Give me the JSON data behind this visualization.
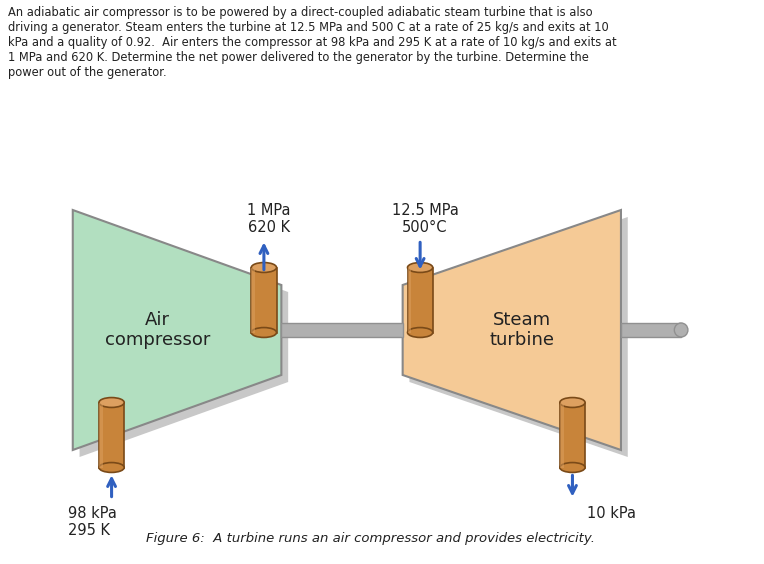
{
  "title_text": "An adiabatic air compressor is to be powered by a direct-coupled adiabatic steam turbine that is also\ndriving a generator. Steam enters the turbine at 12.5 MPa and 500 C at a rate of 25 kg/s and exits at 10\nkPa and a quality of 0.92.  Air enters the compressor at 98 kPa and 295 K at a rate of 10 kg/s and exits at\n1 MPa and 620 K. Determine the net power delivered to the generator by the turbine. Determine the\npower out of the generator.",
  "caption": "Figure 6:  A turbine runs an air compressor and provides electricity.",
  "label_top_left": "1 MPa\n620 K",
  "label_top_right": "12.5 MPa\n500°C",
  "label_bottom_left": "98 kPa\n295 K",
  "label_bottom_right": "10 kPa",
  "label_compressor": "Air\ncompressor",
  "label_turbine": "Steam\nturbine",
  "bg_color": "#ffffff",
  "compressor_fill": "#b2dfc0",
  "turbine_fill": "#f5ca96",
  "shaft_color": "#b0b0b0",
  "shaft_edge": "#909090",
  "tube_fill": "#c8843a",
  "tube_highlight": "#dda060",
  "tube_edge": "#7a4a18",
  "shadow_color": "#c8c8c8",
  "trapez_edge": "#888888",
  "arrow_color": "#3060c0",
  "text_color": "#222222",
  "font_size_body": 8.3,
  "font_size_label": 10.5,
  "font_size_caption": 9.5
}
